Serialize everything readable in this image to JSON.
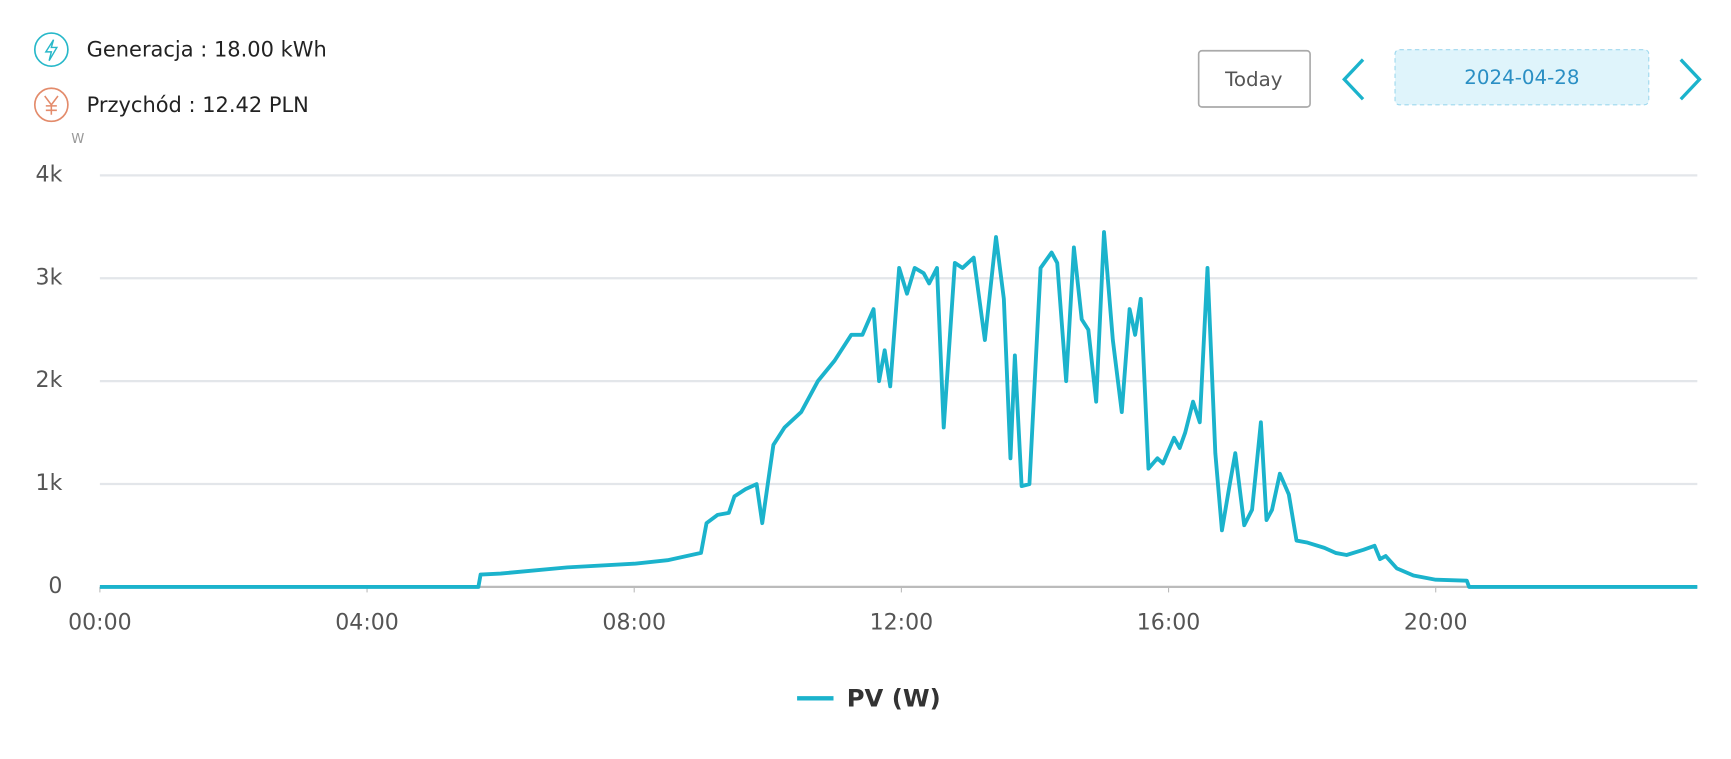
{
  "header": {
    "generation": "Generacja : 18.00 kWh",
    "income": "Przychód : 12.42 PLN",
    "today_button": "Today",
    "date": "2024-04-28"
  },
  "chart_data": {
    "type": "line",
    "y_unit": "W",
    "x": [
      0,
      340,
      342,
      360,
      420,
      480,
      510,
      540,
      545,
      555,
      565,
      570,
      580,
      590,
      595,
      600,
      605,
      615,
      630,
      645,
      660,
      675,
      685,
      695,
      700,
      705,
      710,
      718,
      725,
      732,
      740,
      745,
      752,
      758,
      768,
      775,
      785,
      795,
      805,
      812,
      818,
      822,
      828,
      835,
      845,
      855,
      860,
      868,
      875,
      882,
      888,
      895,
      902,
      910,
      918,
      925,
      930,
      935,
      942,
      950,
      955,
      965,
      970,
      975,
      982,
      988,
      995,
      1002,
      1008,
      1015,
      1020,
      1028,
      1035,
      1043,
      1048,
      1053,
      1060,
      1068,
      1075,
      1085,
      1100,
      1110,
      1120,
      1135,
      1145,
      1150,
      1155,
      1165,
      1180,
      1200,
      1228,
      1230,
      1435
    ],
    "series": [
      {
        "name": "PV (W)",
        "color": "#1bb3cc",
        "values": [
          0,
          0,
          120,
          130,
          190,
          225,
          260,
          330,
          620,
          700,
          720,
          880,
          950,
          1000,
          620,
          1000,
          1380,
          1550,
          1700,
          2000,
          2200,
          2450,
          2450,
          2700,
          2000,
          2300,
          1950,
          3100,
          2850,
          3100,
          3050,
          2950,
          3100,
          1550,
          3150,
          3100,
          3200,
          2400,
          3400,
          2800,
          1250,
          2250,
          980,
          1000,
          3100,
          3250,
          3150,
          2000,
          3300,
          2600,
          2500,
          1800,
          3450,
          2400,
          1700,
          2700,
          2450,
          2800,
          1150,
          1250,
          1200,
          1450,
          1350,
          1500,
          1800,
          1600,
          3100,
          1300,
          550,
          1000,
          1300,
          600,
          750,
          1600,
          650,
          750,
          1100,
          900,
          450,
          430,
          380,
          330,
          310,
          360,
          400,
          270,
          300,
          180,
          110,
          70,
          60,
          0,
          0
        ]
      }
    ],
    "xlim": [
      0,
      1435
    ],
    "xticks": [
      {
        "value": 0,
        "label": "00:00"
      },
      {
        "value": 240,
        "label": "04:00"
      },
      {
        "value": 480,
        "label": "08:00"
      },
      {
        "value": 720,
        "label": "12:00"
      },
      {
        "value": 960,
        "label": "16:00"
      },
      {
        "value": 1200,
        "label": "20:00"
      }
    ],
    "ylim": [
      0,
      4000
    ],
    "yticks": [
      0,
      {
        "value": 1000,
        "label": "1k"
      },
      {
        "value": 2000,
        "label": "2k"
      },
      {
        "value": 3000,
        "label": "3k"
      },
      {
        "value": 4000,
        "label": "4k"
      }
    ],
    "grid": true
  }
}
